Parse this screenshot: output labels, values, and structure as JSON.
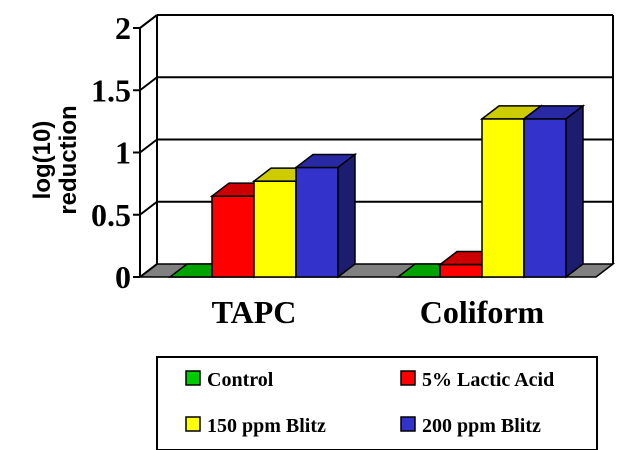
{
  "chart_data": {
    "type": "bar",
    "title": "",
    "xlabel": "",
    "ylabel": [
      "log(10)",
      "reduction"
    ],
    "ylim": [
      0,
      2
    ],
    "yticks": [
      "0",
      "0.5",
      "1",
      "1.5",
      "2"
    ],
    "grid": true,
    "legend_position": "bottom",
    "categories": [
      "TAPC",
      "Coliform"
    ],
    "series": [
      {
        "name": "Control",
        "values": [
          0,
          0
        ],
        "color": "#00cc00"
      },
      {
        "name": "5% Lactic Acid",
        "values": [
          0.65,
          0.1
        ],
        "color": "#ff0000"
      },
      {
        "name": "150 ppm Blitz",
        "values": [
          0.77,
          1.27
        ],
        "color": "#ffff00"
      },
      {
        "name": "200 ppm Blitz",
        "values": [
          0.88,
          1.27
        ],
        "color": "#3333cc"
      }
    ]
  }
}
